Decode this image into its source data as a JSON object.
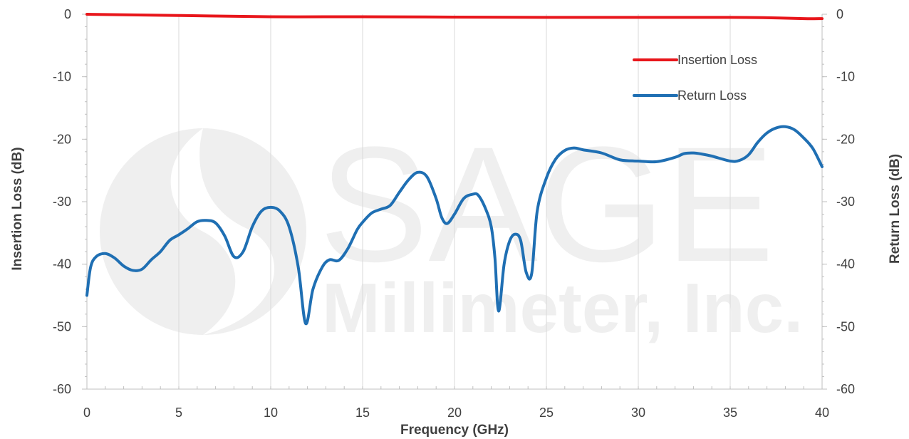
{
  "chart_data": {
    "type": "line",
    "xlabel": "Frequency (GHz)",
    "ylabel_left": "Insertion Loss (dB)",
    "ylabel_right": "Return Loss (dB)",
    "xlim": [
      0,
      40
    ],
    "ylim": [
      -60,
      0
    ],
    "x_ticks": [
      0,
      5,
      10,
      15,
      20,
      25,
      30,
      35,
      40
    ],
    "y_ticks": [
      0,
      -10,
      -20,
      -30,
      -40,
      -50,
      -60
    ],
    "grid": "vertical",
    "legend_position": "top-right",
    "series": [
      {
        "name": "Insertion Loss",
        "color": "#e8161b",
        "x": [
          0,
          5,
          10,
          15,
          20,
          25,
          30,
          35,
          37,
          39,
          40
        ],
        "y": [
          0,
          -0.2,
          -0.4,
          -0.4,
          -0.45,
          -0.5,
          -0.5,
          -0.5,
          -0.55,
          -0.7,
          -0.7
        ]
      },
      {
        "name": "Return Loss",
        "color": "#1f6fb3",
        "x": [
          0,
          0.2,
          0.5,
          1,
          1.5,
          2,
          2.5,
          3,
          3.5,
          4,
          4.5,
          5,
          5.5,
          6,
          6.5,
          7,
          7.5,
          8,
          8.5,
          9,
          9.5,
          10,
          10.5,
          11,
          11.5,
          11.9,
          12.3,
          12.8,
          13.2,
          13.7,
          14.2,
          14.7,
          15,
          15.5,
          16,
          16.5,
          17,
          17.5,
          18,
          18.5,
          19,
          19.3,
          19.6,
          20,
          20.5,
          21,
          21.3,
          21.7,
          22,
          22.2,
          22.4,
          22.7,
          23,
          23.3,
          23.6,
          23.9,
          24.2,
          24.5,
          25,
          25.5,
          26,
          26.5,
          27,
          28,
          29,
          30,
          31,
          32,
          32.5,
          33,
          33.5,
          34,
          35,
          35.5,
          36,
          36.5,
          37,
          37.5,
          38,
          38.5,
          39,
          39.5,
          40
        ],
        "y": [
          -45,
          -40.5,
          -38.8,
          -38.3,
          -39,
          -40.3,
          -41,
          -40.8,
          -39.3,
          -38,
          -36.2,
          -35.3,
          -34.3,
          -33.2,
          -33,
          -33.4,
          -35.5,
          -38.8,
          -38,
          -34,
          -31.5,
          -30.9,
          -31.5,
          -34,
          -40.5,
          -49.5,
          -44,
          -40.5,
          -39.3,
          -39.4,
          -37.5,
          -34.5,
          -33.3,
          -31.8,
          -31.2,
          -30.6,
          -28.5,
          -26.5,
          -25.3,
          -26,
          -29.5,
          -32.5,
          -33.5,
          -32,
          -29.5,
          -28.8,
          -29,
          -31.2,
          -34,
          -39,
          -47.5,
          -40,
          -36.3,
          -35.2,
          -36.2,
          -41.3,
          -41.5,
          -31.5,
          -26.2,
          -23.2,
          -21.8,
          -21.4,
          -21.7,
          -22.2,
          -23.3,
          -23.5,
          -23.6,
          -22.9,
          -22.3,
          -22.2,
          -22.4,
          -22.7,
          -23.5,
          -23.4,
          -22.5,
          -20.5,
          -19,
          -18.2,
          -18,
          -18.5,
          -19.8,
          -21.5,
          -24.4
        ]
      }
    ]
  },
  "watermark": {
    "line1": "SAGE",
    "line2": "Millimeter, Inc."
  }
}
